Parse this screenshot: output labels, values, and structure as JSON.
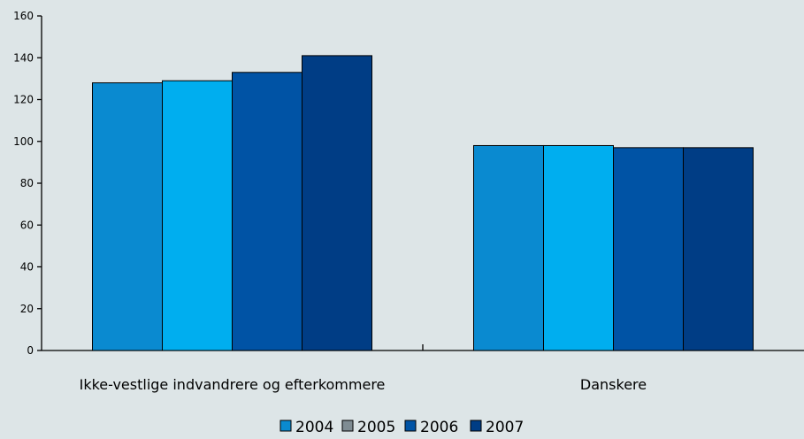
{
  "chart_data": {
    "type": "bar",
    "categories": [
      "Ikke-vestlige indvandrere og efterkommere",
      "Danskere"
    ],
    "series": [
      {
        "name": "2004",
        "values": [
          128,
          98
        ],
        "color": "#0a8ad0",
        "legend_color": "#0a8ad0"
      },
      {
        "name": "2005",
        "values": [
          129,
          98
        ],
        "color": "#00aeef",
        "legend_color": "#7f8c93"
      },
      {
        "name": "2006",
        "values": [
          133,
          97
        ],
        "color": "#0053a5",
        "legend_color": "#0053a5"
      },
      {
        "name": "2007",
        "values": [
          141,
          97
        ],
        "color": "#003d85",
        "legend_color": "#003d85"
      }
    ],
    "yticks": [
      0,
      20,
      40,
      60,
      80,
      100,
      120,
      140,
      160
    ],
    "ylim": [
      0,
      160
    ],
    "grid": false,
    "legend_position": "bottom",
    "title": "",
    "xlabel": "",
    "ylabel": ""
  }
}
